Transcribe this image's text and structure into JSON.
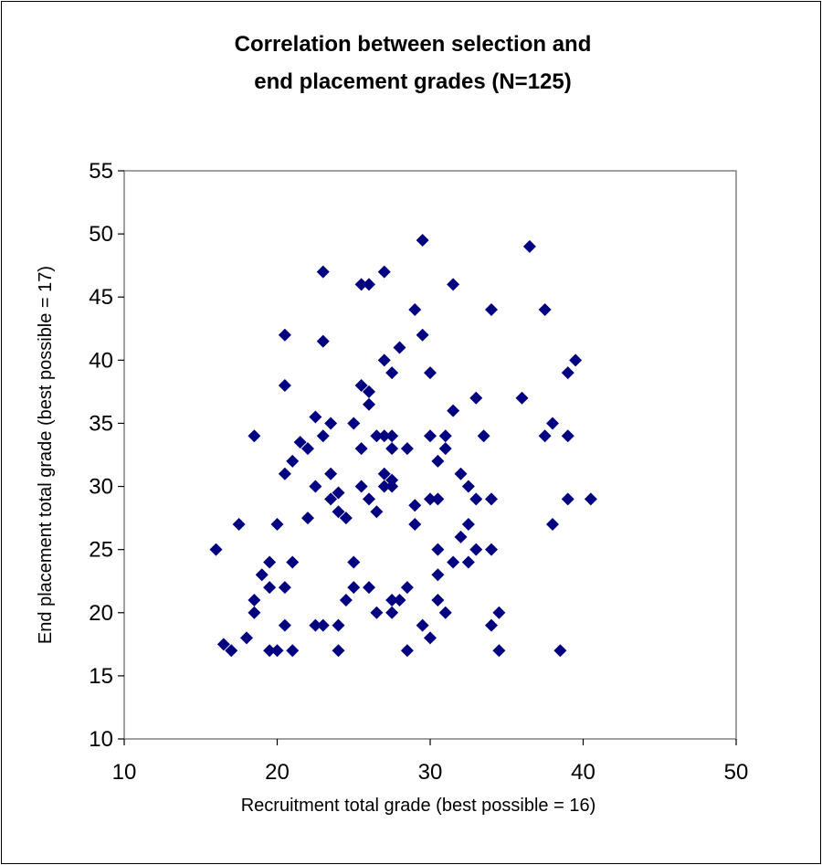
{
  "chart_data": {
    "type": "scatter",
    "title_lines": [
      "Correlation between selection and",
      "end placement grades (N=125)"
    ],
    "xlabel": "Recruitment total grade (best possible = 16)",
    "ylabel": "End placement total grade (best possible = 17)",
    "xlim": [
      10,
      50
    ],
    "ylim": [
      10,
      55
    ],
    "xticks": [
      "10",
      "20",
      "30",
      "40",
      "50"
    ],
    "yticks": [
      "10",
      "15",
      "20",
      "25",
      "30",
      "35",
      "40",
      "45",
      "50",
      "55"
    ],
    "grid": false,
    "legend": "none",
    "marker": "diamond",
    "marker_color": "#000080",
    "points": [
      [
        16,
        25
      ],
      [
        16.5,
        17.5
      ],
      [
        17,
        17
      ],
      [
        17.5,
        27
      ],
      [
        18,
        18
      ],
      [
        18.5,
        21
      ],
      [
        18.5,
        20
      ],
      [
        18.5,
        34
      ],
      [
        19,
        23
      ],
      [
        19.5,
        24
      ],
      [
        19.5,
        22
      ],
      [
        19.5,
        17
      ],
      [
        20,
        27
      ],
      [
        20,
        17
      ],
      [
        20.5,
        42
      ],
      [
        20.5,
        38
      ],
      [
        20.5,
        31
      ],
      [
        20.5,
        22
      ],
      [
        20.5,
        19
      ],
      [
        21,
        32
      ],
      [
        21,
        24
      ],
      [
        21,
        17
      ],
      [
        21.5,
        33.5
      ],
      [
        22,
        33
      ],
      [
        22,
        27.5
      ],
      [
        22.5,
        35.5
      ],
      [
        22.5,
        30
      ],
      [
        22.5,
        19
      ],
      [
        23,
        47
      ],
      [
        23,
        41.5
      ],
      [
        23,
        34
      ],
      [
        23,
        19
      ],
      [
        23.5,
        35
      ],
      [
        23.5,
        31
      ],
      [
        23.5,
        29
      ],
      [
        24,
        29.5
      ],
      [
        24,
        28
      ],
      [
        24,
        19
      ],
      [
        24,
        17
      ],
      [
        24.5,
        27.5
      ],
      [
        24.5,
        21
      ],
      [
        25,
        35
      ],
      [
        25,
        24
      ],
      [
        25,
        22
      ],
      [
        25.5,
        46
      ],
      [
        25.5,
        38
      ],
      [
        25.5,
        33
      ],
      [
        25.5,
        30
      ],
      [
        26,
        46
      ],
      [
        26,
        37.5
      ],
      [
        26,
        36.5
      ],
      [
        26,
        29
      ],
      [
        26,
        22
      ],
      [
        26.5,
        34
      ],
      [
        26.5,
        28
      ],
      [
        26.5,
        20
      ],
      [
        27,
        47
      ],
      [
        27,
        40
      ],
      [
        27,
        34
      ],
      [
        27,
        31
      ],
      [
        27,
        30
      ],
      [
        27.5,
        39
      ],
      [
        27.5,
        34
      ],
      [
        27.5,
        33
      ],
      [
        27.5,
        30.5
      ],
      [
        27.5,
        30
      ],
      [
        27.5,
        21
      ],
      [
        27.5,
        20
      ],
      [
        28,
        41
      ],
      [
        28,
        21
      ],
      [
        28.5,
        33
      ],
      [
        28.5,
        22
      ],
      [
        28.5,
        17
      ],
      [
        29,
        44
      ],
      [
        29,
        28.5
      ],
      [
        29,
        27
      ],
      [
        29.5,
        49.5
      ],
      [
        29.5,
        42
      ],
      [
        29.5,
        19
      ],
      [
        30,
        39
      ],
      [
        30,
        34
      ],
      [
        30,
        29
      ],
      [
        30,
        18
      ],
      [
        30.5,
        32
      ],
      [
        30.5,
        29
      ],
      [
        30.5,
        25
      ],
      [
        30.5,
        23
      ],
      [
        30.5,
        21
      ],
      [
        31,
        34
      ],
      [
        31,
        33
      ],
      [
        31,
        20
      ],
      [
        31.5,
        46
      ],
      [
        31.5,
        36
      ],
      [
        31.5,
        24
      ],
      [
        32,
        31
      ],
      [
        32,
        26
      ],
      [
        32.5,
        30
      ],
      [
        32.5,
        27
      ],
      [
        32.5,
        24
      ],
      [
        33,
        37
      ],
      [
        33,
        29
      ],
      [
        33,
        25
      ],
      [
        33.5,
        34
      ],
      [
        34,
        44
      ],
      [
        34,
        29
      ],
      [
        34,
        25
      ],
      [
        34,
        19
      ],
      [
        34.5,
        20
      ],
      [
        34.5,
        17
      ],
      [
        36,
        37
      ],
      [
        36.5,
        49
      ],
      [
        37.5,
        44
      ],
      [
        37.5,
        34
      ],
      [
        38,
        35
      ],
      [
        38,
        27
      ],
      [
        38.5,
        17
      ],
      [
        39,
        39
      ],
      [
        39,
        34
      ],
      [
        39,
        29
      ],
      [
        39.5,
        40
      ],
      [
        40.5,
        29
      ]
    ]
  }
}
